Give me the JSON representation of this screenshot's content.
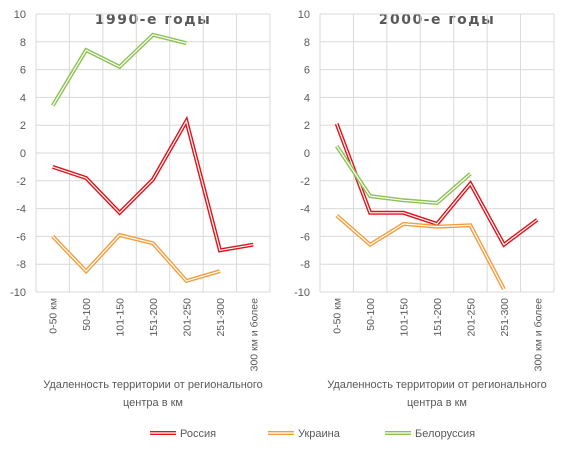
{
  "chart_data": [
    {
      "type": "line",
      "title": "1990-е годы",
      "categories": [
        "0-50 км",
        "50-100",
        "101-150",
        "151-200",
        "201-250",
        "251-300",
        "300 км и более"
      ],
      "xlabel": "Удаленность территории от регионального центра в км",
      "ylabel": "",
      "ylim": [
        -10,
        10
      ],
      "yticks": [
        10,
        8,
        6,
        4,
        2,
        0,
        -2,
        -4,
        -6,
        -8,
        -10
      ],
      "grid": true,
      "series": [
        {
          "name": "Россия",
          "color": "#e2131a",
          "values": [
            -1.0,
            -1.8,
            -4.3,
            -1.9,
            2.3,
            -7.0,
            -6.6
          ]
        },
        {
          "name": "Украина",
          "color": "#f59d3d",
          "values": [
            -6.0,
            -8.5,
            -5.9,
            -6.5,
            -9.2,
            -8.5,
            null
          ]
        },
        {
          "name": "Белоруссия",
          "color": "#8cc152",
          "values": [
            3.4,
            7.4,
            6.2,
            8.5,
            7.9,
            null,
            null
          ]
        }
      ]
    },
    {
      "type": "line",
      "title": "2000-е годы",
      "categories": [
        "0-50 км",
        "50-100",
        "101-150",
        "151-200",
        "201-250",
        "251-300",
        "300 км и более"
      ],
      "xlabel": "Удаленность территории от регионального центра в км",
      "ylabel": "",
      "ylim": [
        -10,
        10
      ],
      "yticks": [
        10,
        8,
        6,
        4,
        2,
        0,
        -2,
        -4,
        -6,
        -8,
        -10
      ],
      "grid": true,
      "series": [
        {
          "name": "Россия",
          "color": "#e2131a",
          "values": [
            2.1,
            -4.3,
            -4.3,
            -5.1,
            -2.2,
            -6.6,
            -4.8
          ]
        },
        {
          "name": "Украина",
          "color": "#f59d3d",
          "values": [
            -4.5,
            -6.6,
            -5.1,
            -5.3,
            -5.2,
            -9.8,
            null
          ]
        },
        {
          "name": "Белоруссия",
          "color": "#8cc152",
          "values": [
            0.5,
            -3.1,
            -3.4,
            -3.6,
            -1.5,
            null,
            null
          ]
        }
      ]
    }
  ],
  "legend": {
    "position": "bottom",
    "entries": [
      {
        "label": "Россия",
        "color": "#e2131a"
      },
      {
        "label": "Украина",
        "color": "#f59d3d"
      },
      {
        "label": "Белоруссия",
        "color": "#8cc152"
      }
    ]
  }
}
